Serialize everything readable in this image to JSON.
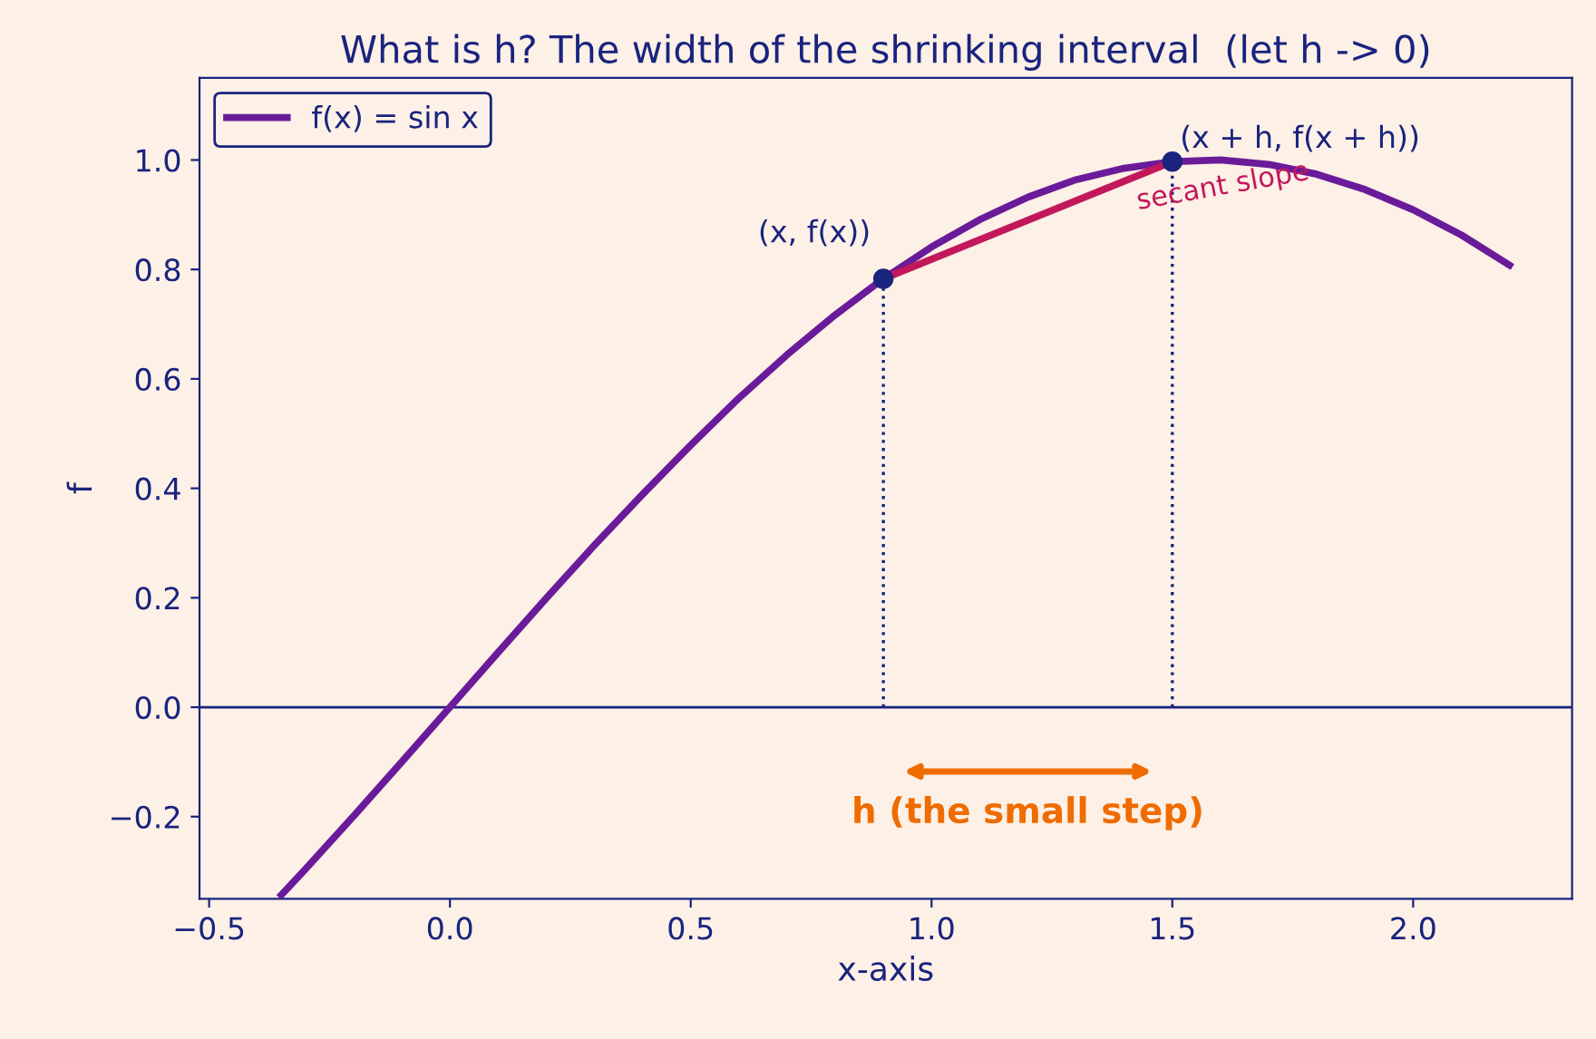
{
  "chart_data": {
    "type": "line",
    "title": "What is h? The width of the shrinking interval  (let h -> 0)",
    "xlabel": "x-axis",
    "ylabel": "f",
    "xlim": [
      -0.52,
      2.33
    ],
    "ylim": [
      -0.35,
      1.15
    ],
    "xticks": [
      {
        "value": -0.5,
        "label": "−0.5"
      },
      {
        "value": 0,
        "label": "0.0"
      },
      0.5,
      {
        "value": 1,
        "label": "1.0"
      },
      1.5,
      {
        "value": 2,
        "label": "2.0"
      }
    ],
    "yticks": [
      {
        "value": -0.2,
        "label": "−0.2"
      },
      {
        "value": 0,
        "label": "0.0"
      },
      0.2,
      0.4,
      0.6,
      0.8,
      {
        "value": 1,
        "label": "1.0"
      }
    ],
    "grid": false,
    "legend": "top left",
    "series": [
      {
        "name": "f(x) = sin x",
        "color": "#6a1b9a",
        "x": [
          -0.35,
          -0.3,
          -0.2,
          -0.1,
          0.0,
          0.1,
          0.2,
          0.3,
          0.4,
          0.5,
          0.6,
          0.7,
          0.8,
          0.9,
          1.0,
          1.1,
          1.2,
          1.3,
          1.4,
          1.5,
          1.6,
          1.7,
          1.8,
          1.9,
          2.0,
          2.1,
          2.2
        ],
        "values": [
          -0.343,
          -0.296,
          -0.199,
          -0.1,
          0.0,
          0.1,
          0.199,
          0.296,
          0.389,
          0.479,
          0.565,
          0.644,
          0.717,
          0.783,
          0.841,
          0.891,
          0.932,
          0.964,
          0.985,
          0.997,
          1.0,
          0.992,
          0.974,
          0.946,
          0.909,
          0.863,
          0.808
        ]
      },
      {
        "type": "line",
        "color": "#c2185b",
        "x": [
          0.9,
          1.5
        ],
        "values": [
          0.783,
          0.997
        ]
      },
      {
        "type": "line",
        "line_style": "dotted",
        "color": "#1a237e",
        "x": [
          0.9,
          0.9
        ],
        "values": [
          0.0,
          0.783
        ]
      },
      {
        "type": "line",
        "line_style": "dotted",
        "color": "#1a237e",
        "x": [
          1.5,
          1.5
        ],
        "values": [
          0.0,
          0.997
        ]
      },
      {
        "type": "scatter",
        "marker": "circle",
        "color": "#1a237e",
        "x": [
          0.9,
          1.5
        ],
        "values": [
          0.783,
          0.997
        ]
      }
    ],
    "ref_lines": [
      {
        "axis": "y",
        "value": 0.0,
        "color": "#1a237e"
      }
    ],
    "annotations": [
      "(x, f(x))",
      "(x + h, f(x + h))",
      "secant slope",
      "h (the small step)"
    ]
  }
}
